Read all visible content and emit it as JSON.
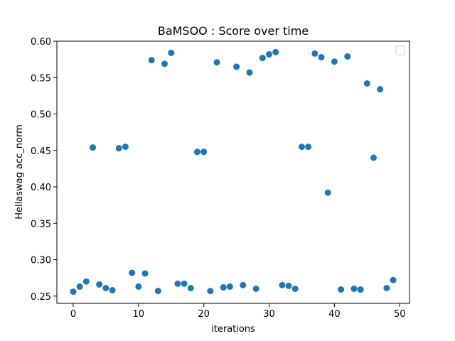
{
  "chart_data": {
    "type": "scatter",
    "title": "BaMSOO : Score over time",
    "xlabel": "iterations",
    "ylabel": "Hellaswag acc_norm",
    "xlim": [
      -2.5,
      51.5
    ],
    "ylim": [
      0.24,
      0.6
    ],
    "xticks": [
      0,
      10,
      20,
      30,
      40,
      50
    ],
    "yticks": [
      0.25,
      0.3,
      0.35,
      0.4,
      0.45,
      0.5,
      0.55,
      0.6
    ],
    "grid": false,
    "legend": "top-right (empty)",
    "marker_color": "#1f77b4",
    "series": [
      {
        "x": [
          0,
          1,
          2,
          3,
          4,
          5,
          6,
          7,
          8,
          9,
          10,
          11,
          12,
          13,
          14,
          15,
          16,
          17,
          18,
          19,
          20,
          21,
          22,
          23,
          24,
          25,
          26,
          27,
          28,
          29,
          30,
          31,
          32,
          33,
          34,
          35,
          36,
          37,
          38,
          39,
          40,
          41,
          42,
          43,
          44,
          45,
          46,
          47,
          48,
          49
        ],
        "y": [
          0.256,
          0.263,
          0.27,
          0.454,
          0.266,
          0.261,
          0.258,
          0.453,
          0.455,
          0.282,
          0.263,
          0.281,
          0.574,
          0.257,
          0.569,
          0.584,
          0.267,
          0.267,
          0.261,
          0.448,
          0.448,
          0.257,
          0.571,
          0.262,
          0.263,
          0.565,
          0.265,
          0.557,
          0.26,
          0.577,
          0.582,
          0.585,
          0.265,
          0.264,
          0.26,
          0.455,
          0.455,
          0.583,
          0.578,
          0.392,
          0.572,
          0.259,
          0.579,
          0.26,
          0.259,
          0.542,
          0.44,
          0.534,
          0.261,
          0.272
        ]
      }
    ]
  }
}
